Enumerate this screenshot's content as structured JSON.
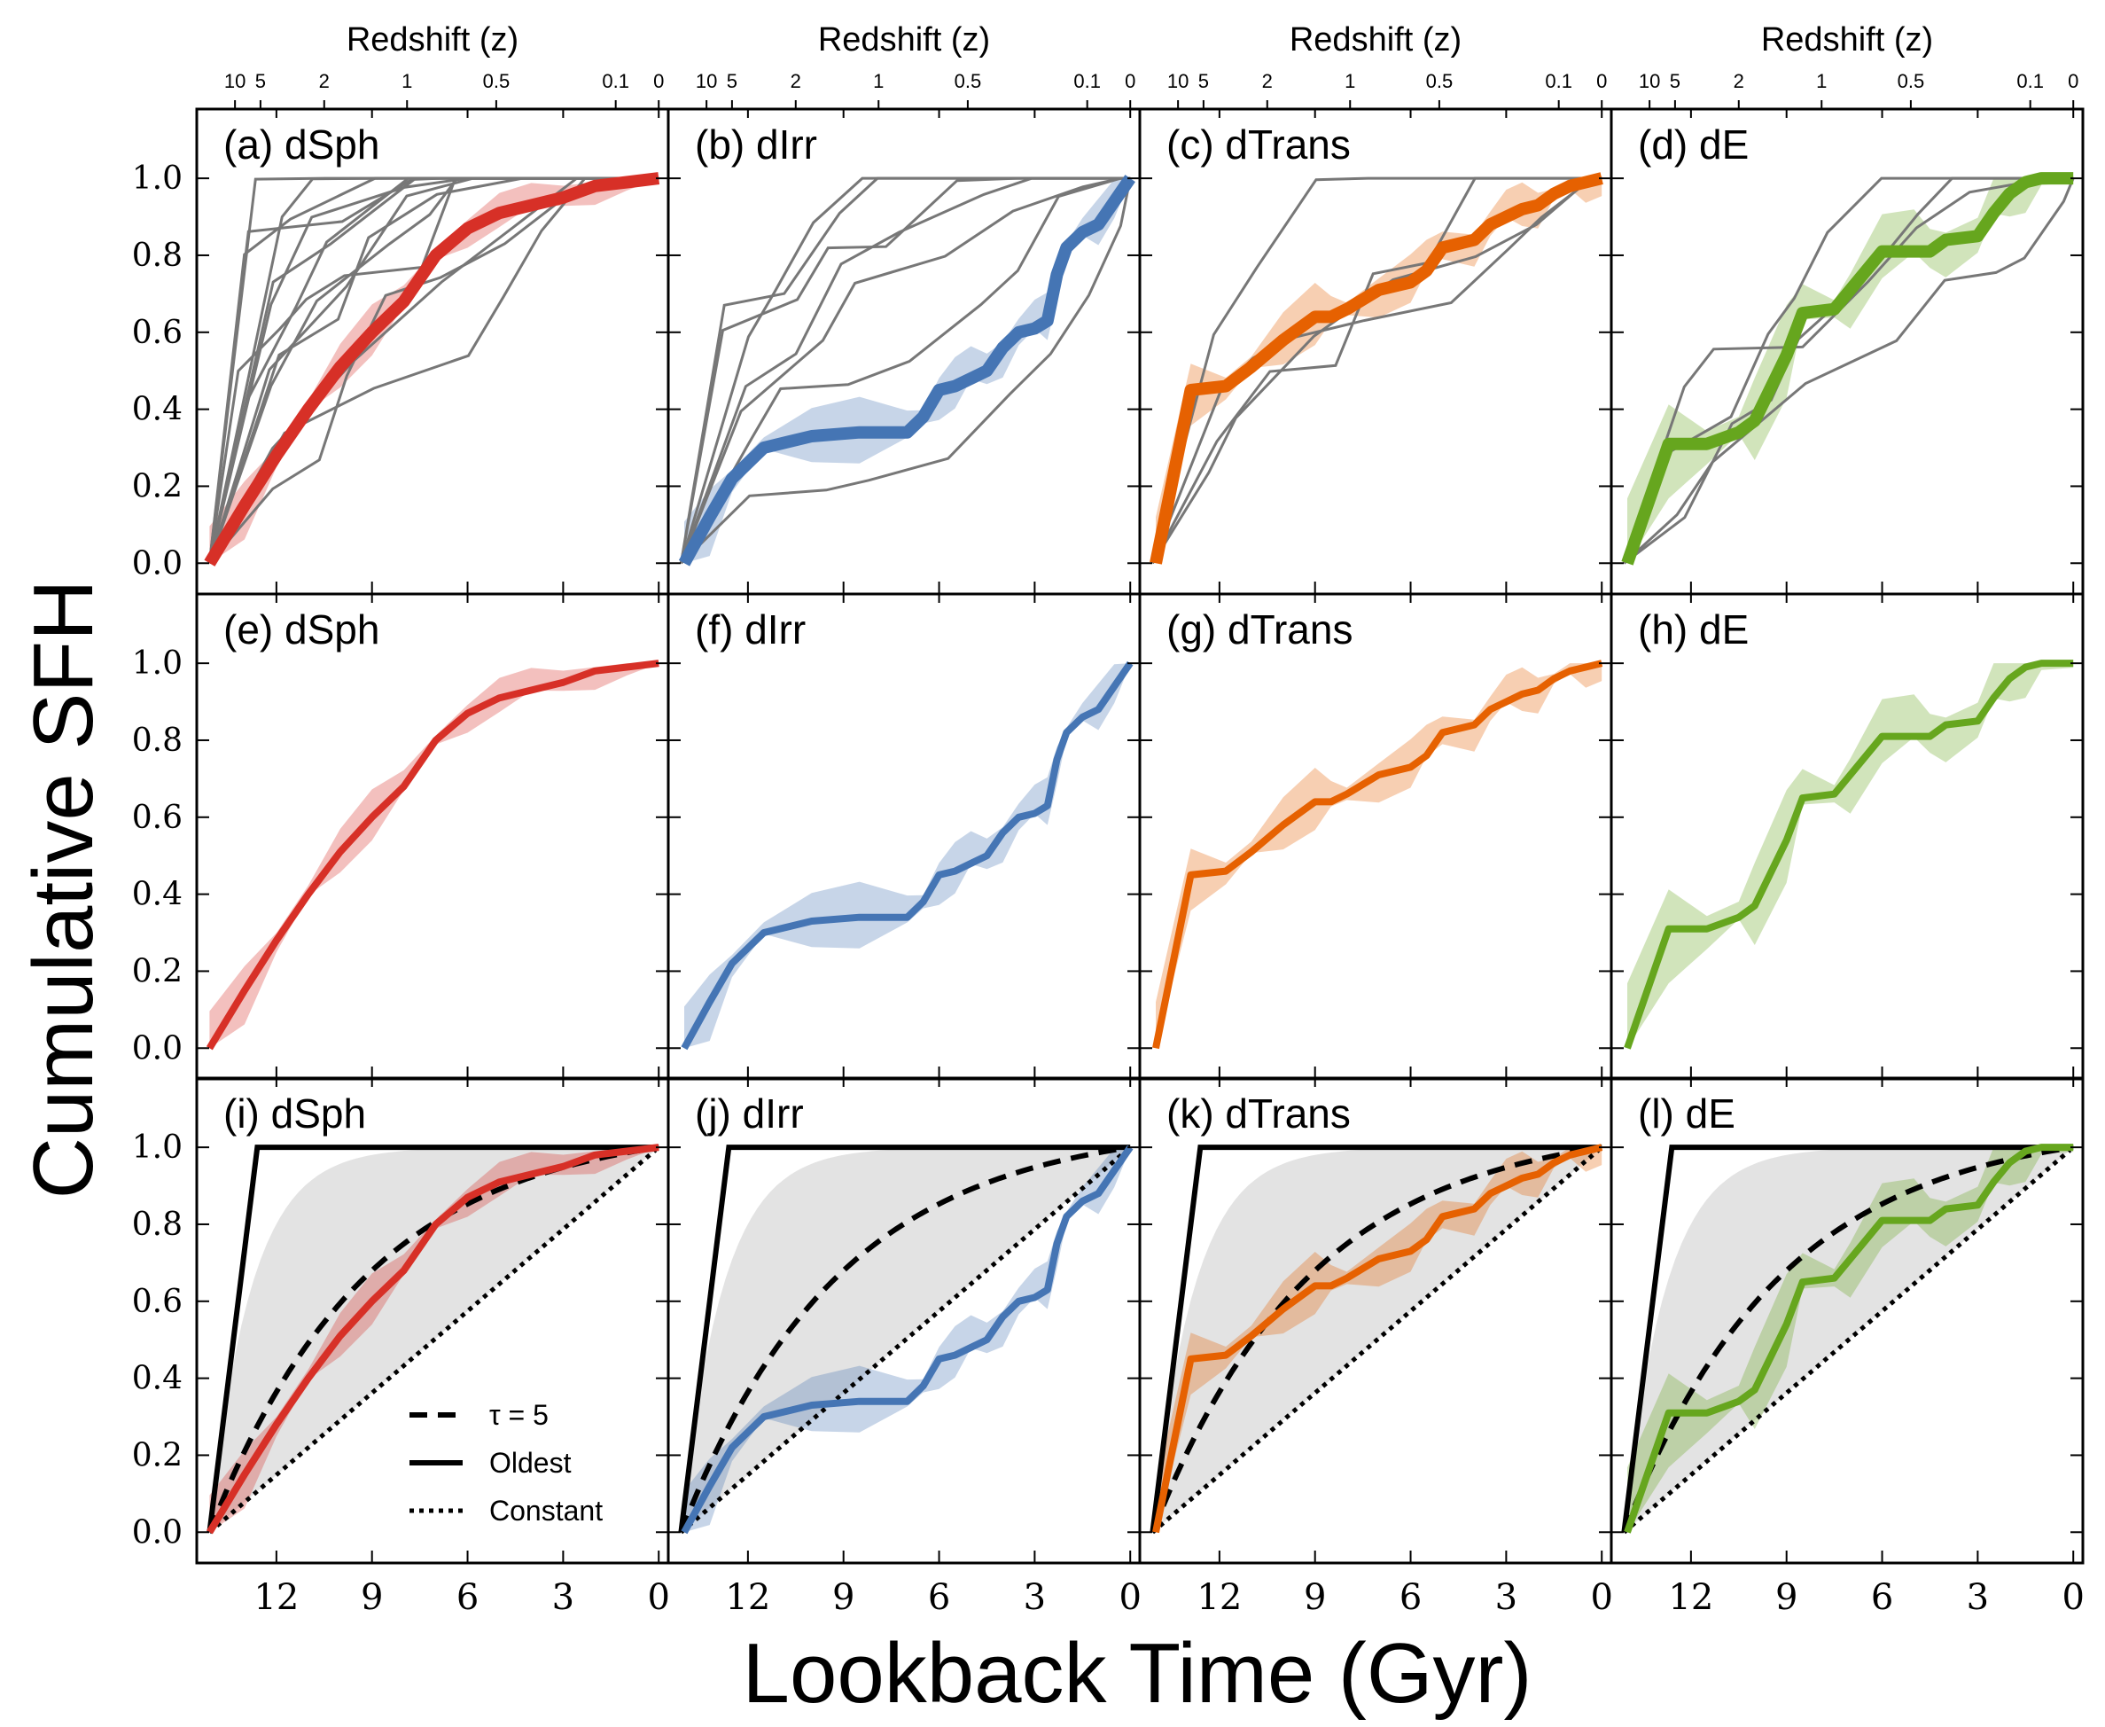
{
  "figure": {
    "ylabel": "Cumulative SFH",
    "xlabel": "Lookback Time (Gyr)",
    "top_xlabel": "Redshift (z)",
    "top_ticks": [
      {
        "label": "10",
        "t": 13.3
      },
      {
        "label": "5",
        "t": 12.5
      },
      {
        "label": "2",
        "t": 10.5
      },
      {
        "label": "1",
        "t": 7.9
      },
      {
        "label": "0.5",
        "t": 5.1
      },
      {
        "label": "0.1",
        "t": 1.35
      },
      {
        "label": "0",
        "t": 0.0
      }
    ],
    "x_ticks": [
      12,
      9,
      6,
      3,
      0
    ],
    "y_ticks": [
      "0.0",
      "0.2",
      "0.4",
      "0.6",
      "0.8",
      "1.0"
    ],
    "xlim": [
      14.5,
      -0.3
    ],
    "ylim": [
      -0.08,
      1.18
    ]
  },
  "colors": {
    "dSph": "#d73027",
    "dIrr": "#4575b4",
    "dTrans": "#e66101",
    "dE": "#66a61e",
    "thin_lines": "#777777",
    "gray_region": "#e3e3e3",
    "reference_lines": "#000000"
  },
  "legend": {
    "tau": "τ = 5",
    "oldest": "Oldest",
    "constant": "Constant"
  },
  "chart_data": [
    {
      "panel": "a",
      "type": "line",
      "title": "(a) dSph",
      "xlabel": "Lookback Time (Gyr)",
      "ylabel": "Cumulative SFH",
      "series": [
        {
          "name": "dSph",
          "x": [
            14.1,
            13.0,
            12.0,
            11.0,
            10.0,
            9.0,
            8.0,
            7.0,
            6.0,
            5.0,
            4.0,
            3.0,
            2.0,
            1.0,
            0.0
          ],
          "values": [
            0.0,
            0.15,
            0.28,
            0.4,
            0.51,
            0.6,
            0.68,
            0.8,
            0.87,
            0.91,
            0.93,
            0.95,
            0.98,
            0.99,
            1.0
          ]
        }
      ]
    },
    {
      "panel": "b",
      "type": "line",
      "title": "(b) dIrr",
      "xlabel": "Lookback Time (Gyr)",
      "ylabel": "Cumulative SFH",
      "series": [
        {
          "name": "dIrr",
          "x": [
            14.0,
            13.2,
            12.5,
            11.5,
            10.0,
            8.5,
            7.0,
            6.5,
            6.0,
            5.5,
            5.0,
            4.5,
            4.0,
            3.5,
            3.0,
            2.6,
            2.3,
            2.0,
            1.5,
            1.0,
            0.5,
            0.0
          ],
          "values": [
            0.0,
            0.12,
            0.22,
            0.3,
            0.33,
            0.34,
            0.34,
            0.38,
            0.45,
            0.46,
            0.48,
            0.5,
            0.56,
            0.6,
            0.61,
            0.63,
            0.75,
            0.82,
            0.86,
            0.88,
            0.94,
            1.0
          ]
        }
      ]
    },
    {
      "panel": "c",
      "type": "line",
      "title": "(c) dTrans",
      "xlabel": "Lookback Time (Gyr)",
      "ylabel": "Cumulative SFH",
      "series": [
        {
          "name": "dTrans",
          "x": [
            14.0,
            12.9,
            11.8,
            11.0,
            10.0,
            9.0,
            8.5,
            8.0,
            7.0,
            6.0,
            5.5,
            5.0,
            4.0,
            3.5,
            3.0,
            2.5,
            2.0,
            1.5,
            1.0,
            0.5,
            0.0
          ],
          "values": [
            0.0,
            0.45,
            0.46,
            0.51,
            0.58,
            0.64,
            0.64,
            0.66,
            0.71,
            0.73,
            0.76,
            0.82,
            0.84,
            0.88,
            0.9,
            0.92,
            0.93,
            0.96,
            0.98,
            0.99,
            1.0
          ]
        }
      ]
    },
    {
      "panel": "d",
      "type": "line",
      "title": "(d) dE",
      "xlabel": "Lookback Time (Gyr)",
      "ylabel": "Cumulative SFH",
      "series": [
        {
          "name": "dE",
          "x": [
            14.0,
            12.7,
            11.5,
            10.5,
            10.0,
            9.0,
            8.5,
            7.5,
            7.0,
            6.0,
            5.0,
            4.5,
            4.0,
            3.0,
            2.5,
            2.0,
            1.5,
            1.0,
            0.0
          ],
          "values": [
            0.0,
            0.31,
            0.31,
            0.34,
            0.37,
            0.54,
            0.65,
            0.66,
            0.71,
            0.81,
            0.81,
            0.81,
            0.84,
            0.85,
            0.91,
            0.96,
            0.99,
            1.0,
            1.0
          ]
        }
      ]
    },
    {
      "panel": "e",
      "type": "line",
      "title": "(e) dSph",
      "xlabel": "Lookback Time (Gyr)",
      "ylabel": "Cumulative SFH",
      "series": [
        {
          "name": "dSph",
          "x": [
            14.1,
            13.0,
            12.0,
            11.0,
            10.0,
            9.0,
            8.0,
            7.0,
            6.0,
            5.0,
            4.0,
            3.0,
            2.0,
            1.0,
            0.0
          ],
          "values": [
            0.0,
            0.15,
            0.28,
            0.4,
            0.51,
            0.6,
            0.68,
            0.8,
            0.87,
            0.91,
            0.93,
            0.95,
            0.98,
            0.99,
            1.0
          ]
        }
      ]
    },
    {
      "panel": "f",
      "type": "line",
      "title": "(f) dIrr",
      "xlabel": "Lookback Time (Gyr)",
      "ylabel": "Cumulative SFH",
      "series": [
        {
          "name": "dIrr",
          "x": [
            14.0,
            13.2,
            12.5,
            11.5,
            10.0,
            8.5,
            7.0,
            6.5,
            6.0,
            5.5,
            5.0,
            4.5,
            4.0,
            3.5,
            3.0,
            2.6,
            2.3,
            2.0,
            1.5,
            1.0,
            0.5,
            0.0
          ],
          "values": [
            0.0,
            0.12,
            0.22,
            0.3,
            0.33,
            0.34,
            0.34,
            0.38,
            0.45,
            0.46,
            0.48,
            0.5,
            0.56,
            0.6,
            0.61,
            0.63,
            0.75,
            0.82,
            0.86,
            0.88,
            0.94,
            1.0
          ]
        }
      ]
    },
    {
      "panel": "g",
      "type": "line",
      "title": "(g) dTrans",
      "xlabel": "Lookback Time (Gyr)",
      "ylabel": "Cumulative SFH",
      "series": [
        {
          "name": "dTrans",
          "x": [
            14.0,
            12.9,
            11.8,
            11.0,
            10.0,
            9.0,
            8.5,
            8.0,
            7.0,
            6.0,
            5.5,
            5.0,
            4.0,
            3.5,
            3.0,
            2.5,
            2.0,
            1.5,
            1.0,
            0.5,
            0.0
          ],
          "values": [
            0.0,
            0.45,
            0.46,
            0.51,
            0.58,
            0.64,
            0.64,
            0.66,
            0.71,
            0.73,
            0.76,
            0.82,
            0.84,
            0.88,
            0.9,
            0.92,
            0.93,
            0.96,
            0.98,
            0.99,
            1.0
          ]
        }
      ]
    },
    {
      "panel": "h",
      "type": "line",
      "title": "(h) dE",
      "xlabel": "Lookback Time (Gyr)",
      "ylabel": "Cumulative SFH",
      "series": [
        {
          "name": "dE",
          "x": [
            14.0,
            12.7,
            11.5,
            10.5,
            10.0,
            9.0,
            8.5,
            7.5,
            7.0,
            6.0,
            5.0,
            4.5,
            4.0,
            3.0,
            2.5,
            2.0,
            1.5,
            1.0,
            0.0
          ],
          "values": [
            0.0,
            0.31,
            0.31,
            0.34,
            0.37,
            0.54,
            0.65,
            0.66,
            0.71,
            0.81,
            0.81,
            0.81,
            0.84,
            0.85,
            0.91,
            0.96,
            0.99,
            1.0,
            1.0
          ]
        }
      ]
    },
    {
      "panel": "i",
      "type": "line",
      "title": "(i) dSph",
      "xlabel": "Lookback Time (Gyr)",
      "ylabel": "Cumulative SFH",
      "series": [
        {
          "name": "dSph",
          "x": [
            14.1,
            13.0,
            12.0,
            11.0,
            10.0,
            9.0,
            8.0,
            7.0,
            6.0,
            5.0,
            4.0,
            3.0,
            2.0,
            1.0,
            0.0
          ],
          "values": [
            0.0,
            0.15,
            0.28,
            0.4,
            0.51,
            0.6,
            0.68,
            0.8,
            0.87,
            0.91,
            0.93,
            0.95,
            0.98,
            0.99,
            1.0
          ]
        }
      ]
    },
    {
      "panel": "j",
      "type": "line",
      "title": "(j) dIrr",
      "xlabel": "Lookback Time (Gyr)",
      "ylabel": "Cumulative SFH",
      "series": [
        {
          "name": "dIrr",
          "x": [
            14.0,
            13.2,
            12.5,
            11.5,
            10.0,
            8.5,
            7.0,
            6.5,
            6.0,
            5.5,
            5.0,
            4.5,
            4.0,
            3.5,
            3.0,
            2.6,
            2.3,
            2.0,
            1.5,
            1.0,
            0.5,
            0.0
          ],
          "values": [
            0.0,
            0.12,
            0.22,
            0.3,
            0.33,
            0.34,
            0.34,
            0.38,
            0.45,
            0.46,
            0.48,
            0.5,
            0.56,
            0.6,
            0.61,
            0.63,
            0.75,
            0.82,
            0.86,
            0.88,
            0.94,
            1.0
          ]
        }
      ]
    },
    {
      "panel": "k",
      "type": "line",
      "title": "(k) dTrans",
      "xlabel": "Lookback Time (Gyr)",
      "ylabel": "Cumulative SFH",
      "series": [
        {
          "name": "dTrans",
          "x": [
            14.0,
            12.9,
            11.8,
            11.0,
            10.0,
            9.0,
            8.5,
            8.0,
            7.0,
            6.0,
            5.5,
            5.0,
            4.0,
            3.5,
            3.0,
            2.5,
            2.0,
            1.5,
            1.0,
            0.5,
            0.0
          ],
          "values": [
            0.0,
            0.45,
            0.46,
            0.51,
            0.58,
            0.64,
            0.64,
            0.66,
            0.71,
            0.73,
            0.76,
            0.82,
            0.84,
            0.88,
            0.9,
            0.92,
            0.93,
            0.96,
            0.98,
            0.99,
            1.0
          ]
        }
      ]
    },
    {
      "panel": "l",
      "type": "line",
      "title": "(l) dE",
      "xlabel": "Lookback Time (Gyr)",
      "ylabel": "Cumulative SFH",
      "series": [
        {
          "name": "dE",
          "x": [
            14.0,
            12.7,
            11.5,
            10.5,
            10.0,
            9.0,
            8.5,
            7.5,
            7.0,
            6.0,
            5.0,
            4.5,
            4.0,
            3.0,
            2.5,
            2.0,
            1.5,
            1.0,
            0.0
          ],
          "values": [
            0.0,
            0.31,
            0.31,
            0.34,
            0.37,
            0.54,
            0.65,
            0.66,
            0.71,
            0.81,
            0.81,
            0.81,
            0.84,
            0.85,
            0.91,
            0.96,
            0.99,
            1.0,
            1.0
          ]
        }
      ]
    }
  ]
}
